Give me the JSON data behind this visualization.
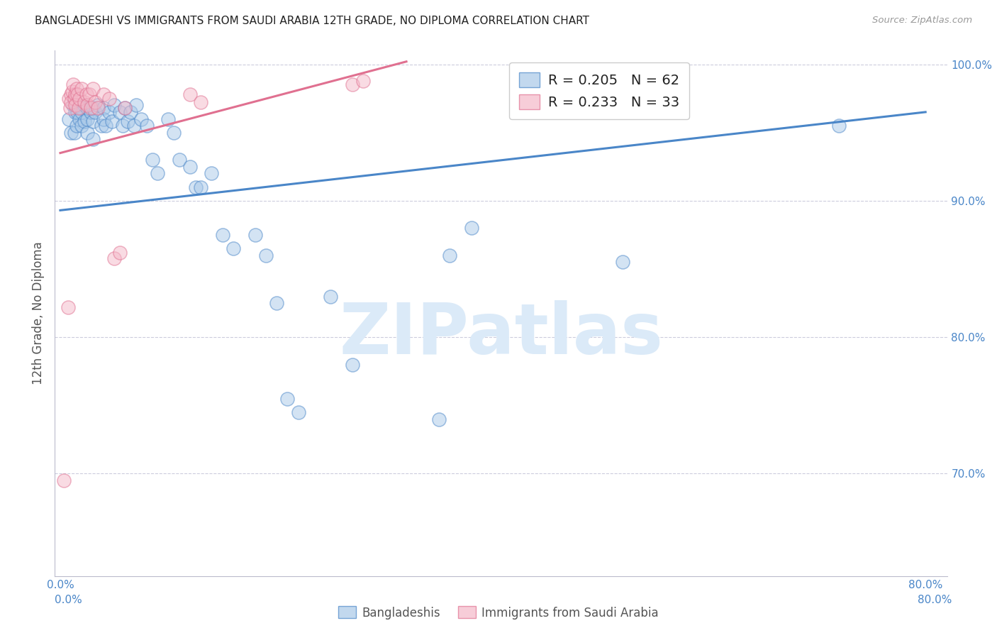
{
  "title": "BANGLADESHI VS IMMIGRANTS FROM SAUDI ARABIA 12TH GRADE, NO DIPLOMA CORRELATION CHART",
  "source": "Source: ZipAtlas.com",
  "ylabel": "12th Grade, No Diploma",
  "legend_blue_label": "Bangladeshis",
  "legend_pink_label": "Immigrants from Saudi Arabia",
  "legend_blue_r": "R = 0.205",
  "legend_blue_n": "N = 62",
  "legend_pink_r": "R = 0.233",
  "legend_pink_n": "N = 33",
  "xlim": [
    -0.005,
    0.82
  ],
  "ylim": [
    0.625,
    1.01
  ],
  "xticks": [
    0.0,
    0.1,
    0.2,
    0.3,
    0.4,
    0.5,
    0.6,
    0.7,
    0.8
  ],
  "xticklabels": [
    "0.0%",
    "",
    "",
    "",
    "",
    "",
    "",
    "",
    "80.0%"
  ],
  "yticks": [
    0.7,
    0.8,
    0.9,
    1.0
  ],
  "yticklabels": [
    "70.0%",
    "80.0%",
    "90.0%",
    "100.0%"
  ],
  "blue_face_color": "#a8c8e8",
  "blue_edge_color": "#4a86c8",
  "pink_face_color": "#f4b8c8",
  "pink_edge_color": "#e07090",
  "blue_line_color": "#4a86c8",
  "pink_line_color": "#e07090",
  "axis_tick_color": "#4a86c8",
  "grid_color": "#ccccdd",
  "watermark_text": "ZIPatlas",
  "watermark_color": "#dbeaf8",
  "blue_scatter_x": [
    0.008,
    0.01,
    0.012,
    0.013,
    0.014,
    0.015,
    0.015,
    0.016,
    0.018,
    0.019,
    0.02,
    0.02,
    0.022,
    0.022,
    0.025,
    0.025,
    0.025,
    0.028,
    0.03,
    0.03,
    0.03,
    0.032,
    0.035,
    0.038,
    0.04,
    0.04,
    0.042,
    0.045,
    0.048,
    0.05,
    0.055,
    0.058,
    0.06,
    0.062,
    0.065,
    0.068,
    0.07,
    0.075,
    0.08,
    0.085,
    0.09,
    0.1,
    0.105,
    0.11,
    0.12,
    0.125,
    0.13,
    0.14,
    0.15,
    0.16,
    0.18,
    0.19,
    0.2,
    0.21,
    0.22,
    0.25,
    0.27,
    0.35,
    0.36,
    0.38,
    0.52,
    0.72
  ],
  "blue_scatter_y": [
    0.96,
    0.95,
    0.97,
    0.95,
    0.965,
    0.97,
    0.955,
    0.965,
    0.96,
    0.968,
    0.955,
    0.965,
    0.958,
    0.97,
    0.96,
    0.95,
    0.968,
    0.965,
    0.968,
    0.958,
    0.945,
    0.965,
    0.97,
    0.955,
    0.968,
    0.96,
    0.955,
    0.965,
    0.958,
    0.97,
    0.965,
    0.955,
    0.968,
    0.958,
    0.965,
    0.955,
    0.97,
    0.96,
    0.955,
    0.93,
    0.92,
    0.96,
    0.95,
    0.93,
    0.925,
    0.91,
    0.91,
    0.92,
    0.875,
    0.865,
    0.875,
    0.86,
    0.825,
    0.755,
    0.745,
    0.83,
    0.78,
    0.74,
    0.86,
    0.88,
    0.855,
    0.955
  ],
  "pink_scatter_x": [
    0.003,
    0.007,
    0.008,
    0.009,
    0.01,
    0.01,
    0.011,
    0.012,
    0.013,
    0.014,
    0.014,
    0.015,
    0.016,
    0.017,
    0.018,
    0.02,
    0.022,
    0.024,
    0.025,
    0.027,
    0.028,
    0.03,
    0.032,
    0.035,
    0.04,
    0.045,
    0.05,
    0.055,
    0.06,
    0.12,
    0.13,
    0.27,
    0.28
  ],
  "pink_scatter_y": [
    0.695,
    0.822,
    0.975,
    0.968,
    0.978,
    0.972,
    0.98,
    0.985,
    0.975,
    0.978,
    0.97,
    0.982,
    0.978,
    0.968,
    0.975,
    0.982,
    0.972,
    0.978,
    0.97,
    0.978,
    0.968,
    0.982,
    0.972,
    0.968,
    0.978,
    0.975,
    0.858,
    0.862,
    0.968,
    0.978,
    0.972,
    0.985,
    0.988
  ],
  "blue_trend_x0": 0.0,
  "blue_trend_x1": 0.8,
  "blue_trend_y0": 0.893,
  "blue_trend_y1": 0.965,
  "pink_trend_x0": 0.0,
  "pink_trend_x1": 0.32,
  "pink_trend_y0": 0.935,
  "pink_trend_y1": 1.002
}
